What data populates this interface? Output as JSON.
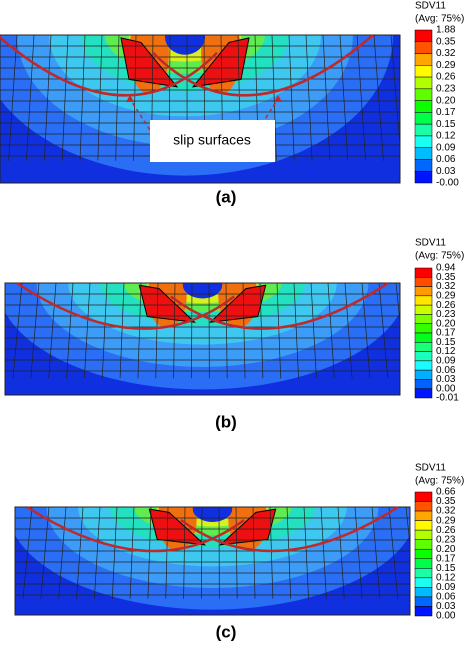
{
  "panels": [
    {
      "label": "(a)",
      "legend_title": "SDV11",
      "legend_subtitle": "(Avg: 75%)",
      "legend_labels": [
        "1.88",
        "0.35",
        "0.32",
        "0.29",
        "0.26",
        "0.23",
        "0.20",
        "0.17",
        "0.15",
        "0.12",
        "0.09",
        "0.06",
        "0.03",
        "-0.00"
      ],
      "annotation": "slip surfaces"
    },
    {
      "label": "(b)",
      "legend_title": "SDV11",
      "legend_subtitle": "(Avg: 75%)",
      "legend_labels": [
        "0.94",
        "0.35",
        "0.32",
        "0.29",
        "0.26",
        "0.23",
        "0.20",
        "0.17",
        "0.15",
        "0.12",
        "0.09",
        "0.06",
        "0.03",
        "0.00",
        "-0.01"
      ]
    },
    {
      "label": "(c)",
      "legend_title": "SDV11",
      "legend_subtitle": "(Avg: 75%)",
      "legend_labels": [
        "0.66",
        "0.35",
        "0.32",
        "0.29",
        "0.26",
        "0.23",
        "0.20",
        "0.17",
        "0.15",
        "0.12",
        "0.09",
        "0.06",
        "0.03",
        "0.00"
      ]
    }
  ]
}
